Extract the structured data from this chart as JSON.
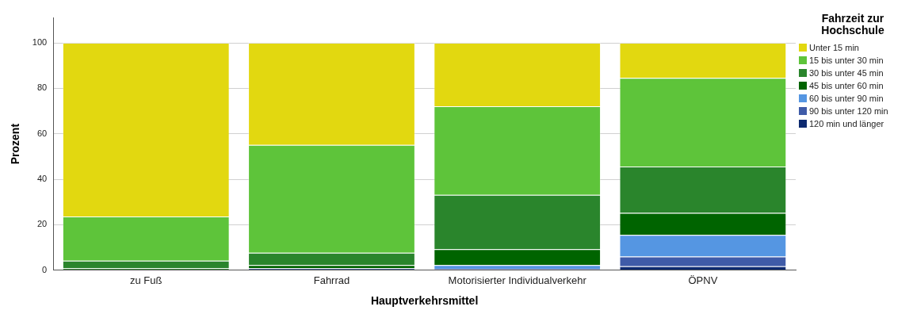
{
  "chart_data": {
    "type": "bar",
    "stacked": true,
    "xlabel": "Hauptverkehrsmittel",
    "ylabel": "Prozent",
    "legend_title": "Fahrzeit zur Hochschule",
    "legend": "right",
    "grid": "y",
    "categories": [
      "zu Fuß",
      "Fahrrad",
      "Motorisierter Individualverkehr",
      "ÖPNV"
    ],
    "ylim": [
      0,
      111
    ],
    "yticks": [
      0,
      20,
      40,
      60,
      80,
      100
    ],
    "series": [
      {
        "name": "120 min und länger",
        "color": "#0d2a70",
        "values": [
          0,
          0.8,
          0,
          1.7
        ]
      },
      {
        "name": "90 bis unter 120 min",
        "color": "#3f5ba8",
        "values": [
          0,
          0,
          0.6,
          4.3
        ]
      },
      {
        "name": "60 bis unter 90 min",
        "color": "#5596e2",
        "values": [
          0,
          0,
          1.6,
          9.5
        ]
      },
      {
        "name": "45 bis unter 60 min",
        "color": "#006400",
        "values": [
          0.8,
          1.4,
          7.0,
          9.7
        ]
      },
      {
        "name": "30 bis unter 45 min",
        "color": "#2a852c",
        "values": [
          3.3,
          5.4,
          23.9,
          20.4
        ]
      },
      {
        "name": "15 bis unter 30 min",
        "color": "#5ec43a",
        "values": [
          19.5,
          47.5,
          39.0,
          39.0
        ]
      },
      {
        "name": "Unter 15 min",
        "color": "#e2d810",
        "values": [
          76.4,
          44.9,
          27.9,
          15.4
        ]
      }
    ]
  }
}
